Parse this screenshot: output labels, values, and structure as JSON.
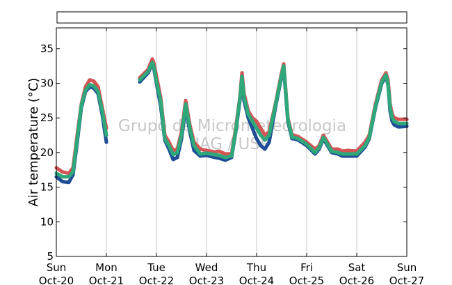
{
  "chart_data": {
    "type": "scatter",
    "title": "",
    "ylabel": "Air temperature (°C)",
    "xlabel": "",
    "ylim": [
      5,
      38
    ],
    "xlim": [
      "2024-10-20 00:00",
      "2024-10-27 00:00"
    ],
    "y_ticks": [
      5,
      10,
      15,
      20,
      25,
      30,
      35
    ],
    "x_ticks": [
      {
        "weekday": "Sun",
        "date": "Oct-20",
        "x": "2024-10-20 00:00"
      },
      {
        "weekday": "Mon",
        "date": "Oct-21",
        "x": "2024-10-21 00:00"
      },
      {
        "weekday": "Tue",
        "date": "Oct-22",
        "x": "2024-10-22 00:00"
      },
      {
        "weekday": "Wed",
        "date": "Oct-23",
        "x": "2024-10-23 00:00"
      },
      {
        "weekday": "Thu",
        "date": "Oct-24",
        "x": "2024-10-24 00:00"
      },
      {
        "weekday": "Fri",
        "date": "Oct-25",
        "x": "2024-10-25 00:00"
      },
      {
        "weekday": "Sat",
        "date": "Oct-26",
        "x": "2024-10-26 00:00"
      },
      {
        "weekday": "Sun",
        "date": "Oct-27",
        "x": "2024-10-27 00:00"
      }
    ],
    "grid": "vertical",
    "legend": "top (empty box)",
    "watermark": [
      "Grupo de Micrometeorologia",
      "IAG / USP"
    ],
    "series_colors": [
      "#d45555",
      "#1f4e96",
      "#2fa87a"
    ],
    "series": [
      {
        "color": "#d45555",
        "x": [
          "2024-10-20 00:00",
          "2024-10-20 03:00",
          "2024-10-20 06:00",
          "2024-10-20 08:00",
          "2024-10-20 10:00",
          "2024-10-20 12:00",
          "2024-10-20 14:00",
          "2024-10-20 16:00",
          "2024-10-20 18:00",
          "2024-10-20 20:00",
          "2024-10-20 22:00",
          "2024-10-21 00:00",
          "2024-10-21 04:00",
          "2024-10-21 08:00",
          "2024-10-21 12:00",
          "2024-10-21 16:00",
          "2024-10-21 20:00",
          "2024-10-21 22:00",
          "2024-10-21 22:40",
          "2024-10-22 00:00",
          "2024-10-22 02:00",
          "2024-10-22 04:00",
          "2024-10-22 06:00",
          "2024-10-22 08:00",
          "2024-10-22 10:00",
          "2024-10-22 12:00",
          "2024-10-22 14:00",
          "2024-10-22 16:00",
          "2024-10-22 18:00",
          "2024-10-22 21:00",
          "2024-10-23 00:00",
          "2024-10-23 04:00",
          "2024-10-23 06:00",
          "2024-10-23 09:00",
          "2024-10-23 12:00",
          "2024-10-23 14:00",
          "2024-10-23 16:00",
          "2024-10-23 17:00",
          "2024-10-23 18:00",
          "2024-10-23 20:00",
          "2024-10-23 22:00",
          "2024-10-24 00:00",
          "2024-10-24 02:00",
          "2024-10-24 04:00",
          "2024-10-24 06:00",
          "2024-10-24 09:00",
          "2024-10-24 12:00",
          "2024-10-24 13:00",
          "2024-10-24 15:00",
          "2024-10-24 17:00",
          "2024-10-24 18:00",
          "2024-10-24 20:00",
          "2024-10-25 00:00",
          "2024-10-25 04:00",
          "2024-10-25 06:00",
          "2024-10-25 08:00",
          "2024-10-25 12:00",
          "2024-10-25 15:00",
          "2024-10-25 17:00",
          "2024-10-25 20:00",
          "2024-10-26 00:00",
          "2024-10-26 04:00",
          "2024-10-26 06:00",
          "2024-10-26 09:00",
          "2024-10-26 12:00",
          "2024-10-26 14:00",
          "2024-10-26 15:00",
          "2024-10-26 16:00",
          "2024-10-26 17:00",
          "2024-10-26 18:00",
          "2024-10-26 20:00",
          "2024-10-27 00:00"
        ],
        "y": [
          17.8,
          17.2,
          17.0,
          17.8,
          22.5,
          27.0,
          29.5,
          30.5,
          30.3,
          29.5,
          26.5,
          23.5,
          null,
          null,
          null,
          30.8,
          32.0,
          33.5,
          33.0,
          31.0,
          28.0,
          22.5,
          21.5,
          20.3,
          20.5,
          23.0,
          27.5,
          24.0,
          21.5,
          20.5,
          20.3,
          20.1,
          20.2,
          19.8,
          19.8,
          23.5,
          28.0,
          31.5,
          28.5,
          26.0,
          25.0,
          24.5,
          23.5,
          22.5,
          23.0,
          27.0,
          31.5,
          32.8,
          25.0,
          22.5,
          22.5,
          22.3,
          21.5,
          20.5,
          21.0,
          22.5,
          20.5,
          20.5,
          20.2,
          20.3,
          20.2,
          21.5,
          22.5,
          27.0,
          30.5,
          31.5,
          30.5,
          27.0,
          25.5,
          25.0,
          24.8,
          24.8
        ]
      },
      {
        "color": "#1f4e96",
        "x": [
          "2024-10-20 00:00",
          "2024-10-20 03:00",
          "2024-10-20 06:00",
          "2024-10-20 08:00",
          "2024-10-20 10:00",
          "2024-10-20 12:00",
          "2024-10-20 14:00",
          "2024-10-20 16:00",
          "2024-10-20 18:00",
          "2024-10-20 20:00",
          "2024-10-20 22:00",
          "2024-10-21 00:00",
          "2024-10-21 04:00",
          "2024-10-21 08:00",
          "2024-10-21 12:00",
          "2024-10-21 16:00",
          "2024-10-21 20:00",
          "2024-10-21 22:00",
          "2024-10-21 22:40",
          "2024-10-22 00:00",
          "2024-10-22 02:00",
          "2024-10-22 04:00",
          "2024-10-22 06:00",
          "2024-10-22 08:00",
          "2024-10-22 10:00",
          "2024-10-22 12:00",
          "2024-10-22 14:00",
          "2024-10-22 16:00",
          "2024-10-22 18:00",
          "2024-10-22 21:00",
          "2024-10-23 00:00",
          "2024-10-23 04:00",
          "2024-10-23 06:00",
          "2024-10-23 09:00",
          "2024-10-23 12:00",
          "2024-10-23 14:00",
          "2024-10-23 16:00",
          "2024-10-23 17:00",
          "2024-10-23 18:00",
          "2024-10-23 20:00",
          "2024-10-23 22:00",
          "2024-10-24 00:00",
          "2024-10-24 02:00",
          "2024-10-24 04:00",
          "2024-10-24 06:00",
          "2024-10-24 09:00",
          "2024-10-24 12:00",
          "2024-10-24 13:00",
          "2024-10-24 15:00",
          "2024-10-24 17:00",
          "2024-10-24 18:00",
          "2024-10-24 20:00",
          "2024-10-25 00:00",
          "2024-10-25 04:00",
          "2024-10-25 06:00",
          "2024-10-25 08:00",
          "2024-10-25 12:00",
          "2024-10-25 15:00",
          "2024-10-25 17:00",
          "2024-10-25 20:00",
          "2024-10-26 00:00",
          "2024-10-26 04:00",
          "2024-10-26 06:00",
          "2024-10-26 09:00",
          "2024-10-26 12:00",
          "2024-10-26 14:00",
          "2024-10-26 15:00",
          "2024-10-26 16:00",
          "2024-10-26 17:00",
          "2024-10-26 18:00",
          "2024-10-26 20:00",
          "2024-10-27 00:00"
        ],
        "y": [
          16.5,
          15.8,
          15.7,
          16.8,
          21.5,
          26.5,
          28.8,
          29.5,
          29.3,
          28.5,
          25.5,
          21.5,
          null,
          null,
          null,
          30.2,
          31.5,
          32.8,
          32.3,
          30.0,
          26.8,
          21.8,
          20.5,
          19.0,
          19.3,
          22.0,
          26.5,
          23.0,
          20.3,
          19.5,
          19.6,
          19.3,
          19.2,
          18.9,
          19.3,
          23.0,
          27.5,
          30.8,
          27.5,
          25.0,
          23.5,
          22.0,
          21.0,
          20.5,
          21.5,
          26.5,
          31.0,
          32.2,
          24.5,
          22.0,
          22.0,
          21.8,
          21.0,
          19.8,
          20.5,
          22.0,
          20.0,
          19.8,
          19.5,
          19.5,
          19.5,
          20.8,
          22.0,
          26.5,
          30.0,
          31.0,
          29.8,
          26.0,
          24.5,
          24.0,
          23.7,
          23.8
        ]
      },
      {
        "color": "#2fa87a",
        "x": [
          "2024-10-20 00:00",
          "2024-10-20 03:00",
          "2024-10-20 06:00",
          "2024-10-20 08:00",
          "2024-10-20 10:00",
          "2024-10-20 12:00",
          "2024-10-20 14:00",
          "2024-10-20 16:00",
          "2024-10-20 18:00",
          "2024-10-20 20:00",
          "2024-10-20 22:00",
          "2024-10-21 00:00",
          "2024-10-21 04:00",
          "2024-10-21 08:00",
          "2024-10-21 12:00",
          "2024-10-21 16:00",
          "2024-10-21 20:00",
          "2024-10-21 22:00",
          "2024-10-21 22:40",
          "2024-10-22 00:00",
          "2024-10-22 02:00",
          "2024-10-22 04:00",
          "2024-10-22 06:00",
          "2024-10-22 08:00",
          "2024-10-22 10:00",
          "2024-10-22 12:00",
          "2024-10-22 14:00",
          "2024-10-22 16:00",
          "2024-10-22 18:00",
          "2024-10-22 21:00",
          "2024-10-23 00:00",
          "2024-10-23 04:00",
          "2024-10-23 06:00",
          "2024-10-23 09:00",
          "2024-10-23 12:00",
          "2024-10-23 14:00",
          "2024-10-23 16:00",
          "2024-10-23 17:00",
          "2024-10-23 18:00",
          "2024-10-23 20:00",
          "2024-10-23 22:00",
          "2024-10-24 00:00",
          "2024-10-24 02:00",
          "2024-10-24 04:00",
          "2024-10-24 06:00",
          "2024-10-24 09:00",
          "2024-10-24 12:00",
          "2024-10-24 13:00",
          "2024-10-24 15:00",
          "2024-10-24 17:00",
          "2024-10-24 18:00",
          "2024-10-24 20:00",
          "2024-10-25 00:00",
          "2024-10-25 04:00",
          "2024-10-25 06:00",
          "2024-10-25 08:00",
          "2024-10-25 12:00",
          "2024-10-25 15:00",
          "2024-10-25 17:00",
          "2024-10-25 20:00",
          "2024-10-26 00:00",
          "2024-10-26 04:00",
          "2024-10-26 06:00",
          "2024-10-26 09:00",
          "2024-10-26 12:00",
          "2024-10-26 14:00",
          "2024-10-26 15:00",
          "2024-10-26 16:00",
          "2024-10-26 17:00",
          "2024-10-26 18:00",
          "2024-10-26 20:00",
          "2024-10-27 00:00"
        ],
        "y": [
          17.0,
          16.5,
          16.5,
          17.2,
          22.0,
          26.8,
          29.0,
          29.8,
          29.6,
          28.8,
          26.0,
          22.5,
          null,
          null,
          null,
          30.5,
          31.7,
          33.0,
          32.5,
          30.3,
          27.5,
          22.0,
          21.0,
          19.7,
          20.0,
          22.5,
          27.0,
          23.5,
          21.0,
          19.8,
          19.9,
          19.7,
          19.6,
          19.3,
          19.5,
          23.2,
          27.8,
          31.0,
          28.0,
          25.5,
          24.5,
          23.5,
          22.5,
          21.8,
          22.5,
          26.8,
          31.2,
          32.5,
          24.8,
          22.2,
          22.2,
          22.0,
          21.2,
          20.0,
          20.7,
          22.2,
          20.2,
          20.0,
          19.8,
          19.8,
          19.8,
          21.0,
          22.2,
          26.7,
          30.2,
          31.2,
          30.0,
          26.5,
          25.0,
          24.5,
          24.2,
          24.2
        ]
      }
    ]
  }
}
